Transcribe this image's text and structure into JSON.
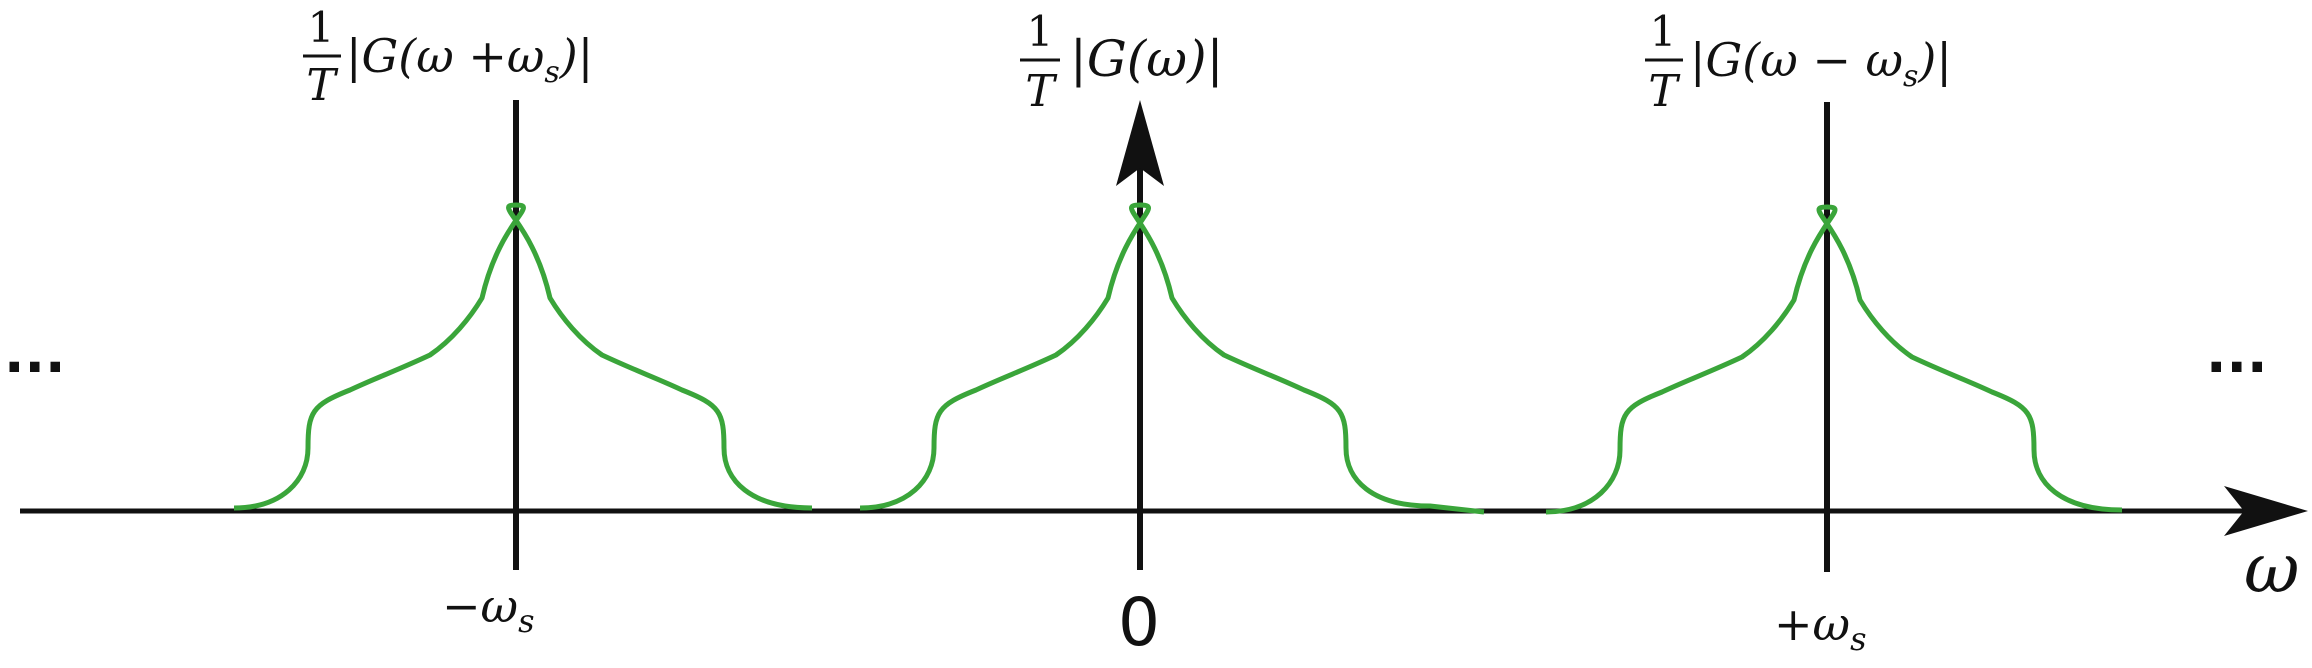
{
  "colors": {
    "axis": "#111111",
    "curve": "#3aa53a"
  },
  "axis": {
    "x_label": "ω",
    "ellipsis_left": "...",
    "ellipsis_right": "..."
  },
  "copies": [
    {
      "tick_label": "−ω",
      "tick_sub": "s",
      "frac_num": "1",
      "frac_den": "T",
      "expr": "|G(ω +ω",
      "expr_sub": "s",
      "expr_end": ")|"
    },
    {
      "tick_label": "0",
      "tick_sub": "",
      "frac_num": "1",
      "frac_den": "T",
      "expr": "|G(ω)|",
      "expr_sub": "",
      "expr_end": ""
    },
    {
      "tick_label": "+ω",
      "tick_sub": "s",
      "frac_num": "1",
      "frac_den": "T",
      "expr": "|G(ω − ω",
      "expr_sub": "s",
      "expr_end": ")|"
    }
  ]
}
